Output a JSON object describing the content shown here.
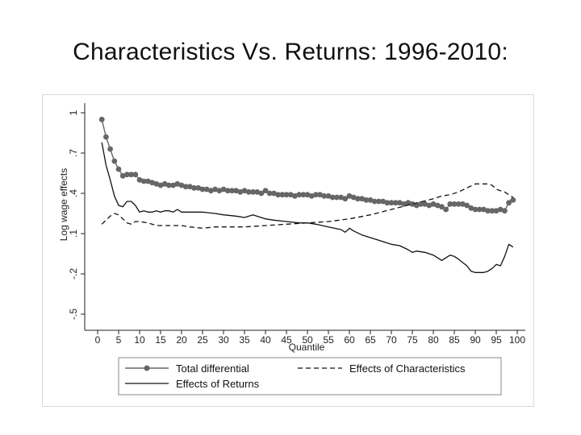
{
  "title": "Characteristics Vs. Returns: 1996-2010:",
  "chart_data": {
    "type": "line",
    "xlabel": "Quantile",
    "ylabel": "Log wage effects",
    "xlim": [
      0,
      100
    ],
    "ylim": [
      -0.5,
      1.0
    ],
    "xticks": [
      "0",
      "5",
      "10",
      "15",
      "20",
      "25",
      "30",
      "35",
      "40",
      "45",
      "50",
      "55",
      "60",
      "65",
      "70",
      "75",
      "80",
      "85",
      "90",
      "95",
      "100"
    ],
    "yticks": [
      "-.5",
      "-.2",
      ".1",
      ".4",
      ".7",
      "1"
    ],
    "ytick_values": [
      -0.5,
      -0.2,
      0.1,
      0.4,
      0.7,
      1.0
    ],
    "grid": false,
    "legend_position": "bottom",
    "series": [
      {
        "name": "Total differential",
        "style": "solid-markers",
        "color": "#666666",
        "x": [
          1,
          2,
          3,
          4,
          5,
          6,
          7,
          8,
          9,
          10,
          11,
          12,
          13,
          14,
          15,
          16,
          17,
          18,
          19,
          20,
          21,
          22,
          23,
          24,
          25,
          26,
          27,
          28,
          29,
          30,
          31,
          32,
          33,
          34,
          35,
          36,
          37,
          38,
          39,
          40,
          41,
          42,
          43,
          44,
          45,
          46,
          47,
          48,
          49,
          50,
          51,
          52,
          53,
          54,
          55,
          56,
          57,
          58,
          59,
          60,
          61,
          62,
          63,
          64,
          65,
          66,
          67,
          68,
          69,
          70,
          71,
          72,
          73,
          74,
          75,
          76,
          77,
          78,
          79,
          80,
          81,
          82,
          83,
          84,
          85,
          86,
          87,
          88,
          89,
          90,
          91,
          92,
          93,
          94,
          95,
          96,
          97,
          98,
          99
        ],
        "values": [
          0.95,
          0.82,
          0.73,
          0.64,
          0.58,
          0.53,
          0.54,
          0.54,
          0.54,
          0.5,
          0.49,
          0.49,
          0.48,
          0.47,
          0.46,
          0.47,
          0.46,
          0.46,
          0.47,
          0.46,
          0.45,
          0.45,
          0.44,
          0.44,
          0.43,
          0.43,
          0.42,
          0.43,
          0.42,
          0.43,
          0.42,
          0.42,
          0.42,
          0.41,
          0.42,
          0.41,
          0.41,
          0.41,
          0.4,
          0.42,
          0.4,
          0.4,
          0.39,
          0.39,
          0.39,
          0.39,
          0.38,
          0.39,
          0.39,
          0.39,
          0.38,
          0.39,
          0.39,
          0.38,
          0.38,
          0.37,
          0.37,
          0.37,
          0.36,
          0.38,
          0.37,
          0.36,
          0.36,
          0.35,
          0.35,
          0.34,
          0.34,
          0.34,
          0.33,
          0.33,
          0.33,
          0.33,
          0.32,
          0.33,
          0.32,
          0.31,
          0.32,
          0.32,
          0.31,
          0.32,
          0.31,
          0.3,
          0.28,
          0.32,
          0.32,
          0.32,
          0.32,
          0.31,
          0.29,
          0.28,
          0.28,
          0.28,
          0.27,
          0.27,
          0.27,
          0.28,
          0.27,
          0.33,
          0.35
        ]
      },
      {
        "name": "Effects of Characteristics",
        "style": "dashed",
        "color": "#111111",
        "x": [
          1,
          2,
          3,
          4,
          5,
          6,
          7,
          8,
          9,
          10,
          12,
          14,
          16,
          18,
          20,
          22,
          25,
          28,
          30,
          35,
          40,
          45,
          50,
          55,
          60,
          65,
          70,
          75,
          80,
          82,
          84,
          86,
          88,
          90,
          91,
          92,
          93,
          94,
          95,
          96,
          97,
          98,
          99
        ],
        "values": [
          0.17,
          0.2,
          0.23,
          0.25,
          0.24,
          0.21,
          0.18,
          0.17,
          0.19,
          0.19,
          0.18,
          0.16,
          0.16,
          0.16,
          0.16,
          0.15,
          0.14,
          0.15,
          0.15,
          0.15,
          0.16,
          0.17,
          0.18,
          0.19,
          0.21,
          0.24,
          0.28,
          0.32,
          0.36,
          0.38,
          0.39,
          0.41,
          0.44,
          0.47,
          0.47,
          0.47,
          0.47,
          0.46,
          0.43,
          0.42,
          0.41,
          0.39,
          0.37
        ]
      },
      {
        "name": "Effects of Returns",
        "style": "solid",
        "color": "#111111",
        "x": [
          1,
          2,
          3,
          4,
          5,
          6,
          7,
          8,
          9,
          10,
          11,
          12,
          13,
          14,
          15,
          16,
          17,
          18,
          19,
          20,
          22,
          25,
          28,
          30,
          33,
          35,
          37,
          40,
          42,
          45,
          48,
          50,
          52,
          55,
          58,
          59,
          60,
          61,
          63,
          65,
          67,
          70,
          72,
          74,
          75,
          76,
          78,
          80,
          82,
          84,
          85,
          86,
          88,
          89,
          90,
          91,
          92,
          93,
          94,
          95,
          96,
          97,
          98,
          99
        ],
        "values": [
          0.78,
          0.61,
          0.5,
          0.38,
          0.31,
          0.3,
          0.34,
          0.34,
          0.31,
          0.26,
          0.27,
          0.26,
          0.26,
          0.27,
          0.26,
          0.27,
          0.27,
          0.26,
          0.28,
          0.26,
          0.26,
          0.26,
          0.25,
          0.24,
          0.23,
          0.22,
          0.24,
          0.21,
          0.2,
          0.19,
          0.18,
          0.18,
          0.17,
          0.15,
          0.13,
          0.11,
          0.14,
          0.12,
          0.09,
          0.07,
          0.05,
          0.02,
          0.01,
          -0.02,
          -0.04,
          -0.03,
          -0.04,
          -0.06,
          -0.1,
          -0.06,
          -0.07,
          -0.09,
          -0.14,
          -0.18,
          -0.19,
          -0.19,
          -0.19,
          -0.18,
          -0.16,
          -0.13,
          -0.14,
          -0.07,
          0.02,
          0.0
        ]
      }
    ]
  }
}
